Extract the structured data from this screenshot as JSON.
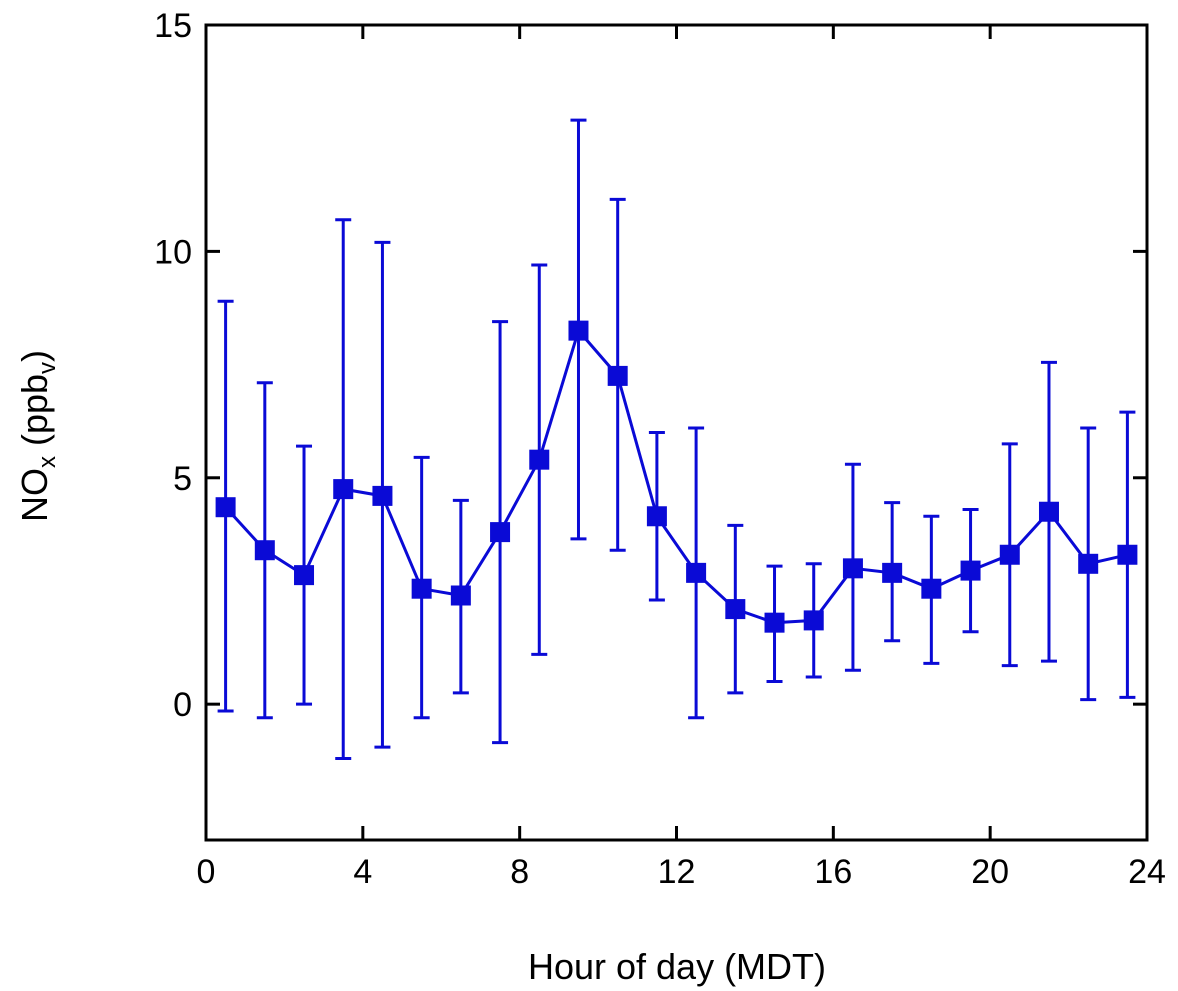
{
  "chart_data": {
    "type": "line",
    "xlabel": "Hour of day (MDT)",
    "ylabel": {
      "main": "NO",
      "sub1": "x",
      "mid": " (ppb",
      "sub2": "v",
      "end": ")"
    },
    "xlim": [
      0,
      24
    ],
    "ylim": [
      -3,
      15
    ],
    "x_ticks": [
      0,
      4,
      8,
      12,
      16,
      20,
      24
    ],
    "x_tick_labels": [
      "0",
      "4",
      "8",
      "12",
      "16",
      "20",
      "24"
    ],
    "y_ticks": [
      0,
      5,
      10,
      15
    ],
    "y_tick_labels": [
      "0",
      "5",
      "10",
      "15"
    ],
    "grid": false,
    "legend": "none",
    "series": [
      {
        "color": "#0a0ad6",
        "marker": "square",
        "x": [
          0.5,
          1.5,
          2.5,
          3.5,
          4.5,
          5.5,
          6.5,
          7.5,
          8.5,
          9.5,
          10.5,
          11.5,
          12.5,
          13.5,
          14.5,
          15.5,
          16.5,
          17.5,
          18.5,
          19.5,
          20.5,
          21.5,
          22.5,
          23.5
        ],
        "y": [
          4.35,
          3.4,
          2.85,
          4.75,
          4.6,
          2.55,
          2.4,
          3.8,
          5.4,
          8.25,
          7.25,
          4.15,
          2.9,
          2.1,
          1.8,
          1.85,
          3.0,
          2.9,
          2.55,
          2.95,
          3.3,
          4.25,
          3.1,
          3.3
        ],
        "err_low": [
          -0.15,
          -0.3,
          0.0,
          -1.2,
          -0.95,
          -0.3,
          0.25,
          -0.85,
          1.1,
          3.65,
          3.4,
          2.3,
          -0.3,
          0.25,
          0.5,
          0.6,
          0.75,
          1.4,
          0.9,
          1.6,
          0.85,
          0.95,
          0.1,
          0.15
        ],
        "err_high": [
          8.9,
          7.1,
          5.7,
          10.7,
          10.2,
          5.45,
          4.5,
          8.45,
          9.7,
          12.9,
          11.15,
          6.0,
          6.1,
          3.95,
          3.05,
          3.1,
          5.3,
          4.45,
          4.15,
          4.3,
          5.75,
          7.55,
          6.1,
          6.45
        ]
      }
    ]
  }
}
